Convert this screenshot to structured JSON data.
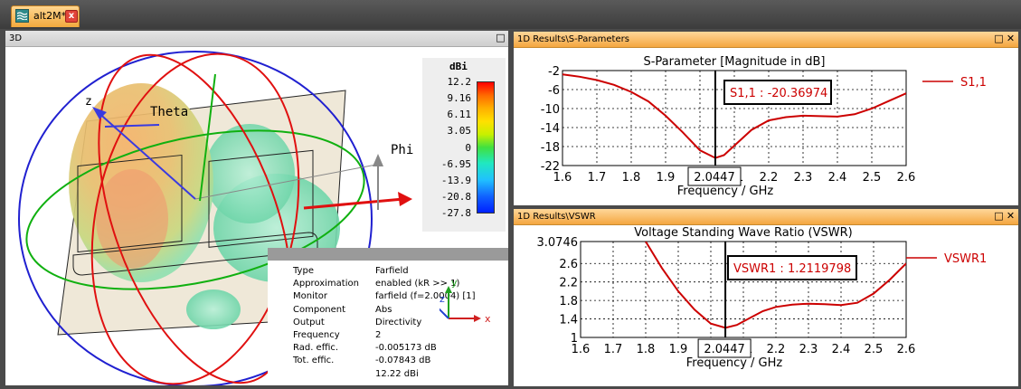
{
  "tab": {
    "title": "alt2M*",
    "close_glyph": "x",
    "icon": "app-logo-icon"
  },
  "panels": {
    "view3d": {
      "title": "3D",
      "button_glyph": "□"
    },
    "sparam": {
      "title": "1D Results\\S-Parameters",
      "buttons": [
        "□",
        "✕"
      ]
    },
    "vswr": {
      "title": "1D Results\\VSWR",
      "buttons": [
        "□",
        "✕"
      ]
    }
  },
  "view3d": {
    "axis_labels": {
      "z": "z",
      "theta": "Theta",
      "phi": "Phi"
    },
    "scale": {
      "unit": "dBi",
      "labels": [
        "12.2",
        "9.16",
        "6.11",
        "3.05",
        "0",
        "-6.95",
        "-13.9",
        "-20.8",
        "-27.8"
      ]
    },
    "info": [
      {
        "key": "Type",
        "value": "Farfield"
      },
      {
        "key": "Approximation",
        "value": "enabled (kR >> 1)"
      },
      {
        "key": "Monitor",
        "value": "farfield (f=2.0004) [1]"
      },
      {
        "key": "Component",
        "value": "Abs"
      },
      {
        "key": "Output",
        "value": "Directivity"
      },
      {
        "key": "Frequency",
        "value": "2"
      },
      {
        "key": "Rad. effic.",
        "value": "-0.005173 dB"
      },
      {
        "key": "Tot. effic.",
        "value": "-0.07843 dB"
      },
      {
        "key": "",
        "value": "12.22 dBi"
      }
    ],
    "triad_labels": {
      "x": "x",
      "y": "y",
      "z": "z"
    },
    "colors": {
      "red_ring": "#e01010",
      "green_ring": "#10b010",
      "blue_ring": "#2020d0"
    }
  },
  "chart_data": [
    {
      "type": "line",
      "title": "S-Parameter [Magnitude in dB]",
      "xlabel": "Frequency / GHz",
      "x_ticks": [
        "1.6",
        "1.7",
        "1.8",
        "1.9",
        "2",
        "2.1",
        "2.2",
        "2.3",
        "2.4",
        "2.5",
        "2.6"
      ],
      "y_ticks": [
        "-2",
        "-6",
        "-10",
        "-14",
        "-18",
        "-22"
      ],
      "xlim": [
        1.6,
        2.6
      ],
      "ylim": [
        -22,
        -2
      ],
      "grid": true,
      "marker": {
        "x": 2.0447,
        "x_label": "2.0447",
        "readout": "S1,1 : -20.36974"
      },
      "series": [
        {
          "name": "S1,1",
          "color": "#cc0000",
          "x": [
            1.6,
            1.65,
            1.7,
            1.75,
            1.8,
            1.85,
            1.9,
            1.95,
            2.0,
            2.0447,
            2.07,
            2.1,
            2.15,
            2.2,
            2.25,
            2.3,
            2.35,
            2.4,
            2.45,
            2.5,
            2.55,
            2.6
          ],
          "y": [
            -2.8,
            -3.3,
            -4.0,
            -5.0,
            -6.5,
            -8.5,
            -11.5,
            -15.0,
            -18.8,
            -20.4,
            -19.8,
            -17.8,
            -14.5,
            -12.5,
            -11.8,
            -11.5,
            -11.6,
            -11.7,
            -11.2,
            -10.0,
            -8.4,
            -6.8
          ]
        }
      ]
    },
    {
      "type": "line",
      "title": "Voltage Standing Wave Ratio (VSWR)",
      "xlabel": "Frequency / GHz",
      "x_ticks": [
        "1.6",
        "1.7",
        "1.8",
        "1.9",
        "2",
        "2.1",
        "2.2",
        "2.3",
        "2.4",
        "2.5",
        "2.6"
      ],
      "y_ticks": [
        "3.0746",
        "2.6",
        "2.2",
        "1.8",
        "1.4",
        "1"
      ],
      "y_tick_values": [
        3.0746,
        2.6,
        2.2,
        1.8,
        1.4,
        1
      ],
      "xlim": [
        1.6,
        2.6
      ],
      "ylim": [
        1,
        3.0746
      ],
      "grid": true,
      "marker": {
        "x": 2.0447,
        "x_label": "2.0447",
        "readout": "VSWR1 : 1.2119798"
      },
      "series": [
        {
          "name": "VSWR1",
          "color": "#cc0000",
          "x": [
            1.8,
            1.85,
            1.9,
            1.95,
            2.0,
            2.0447,
            2.08,
            2.12,
            2.16,
            2.2,
            2.25,
            2.3,
            2.35,
            2.4,
            2.45,
            2.5,
            2.55,
            2.6
          ],
          "y": [
            3.0746,
            2.5,
            2.0,
            1.6,
            1.3,
            1.21,
            1.27,
            1.42,
            1.57,
            1.66,
            1.71,
            1.73,
            1.72,
            1.7,
            1.75,
            1.95,
            2.25,
            2.6
          ]
        }
      ]
    }
  ]
}
